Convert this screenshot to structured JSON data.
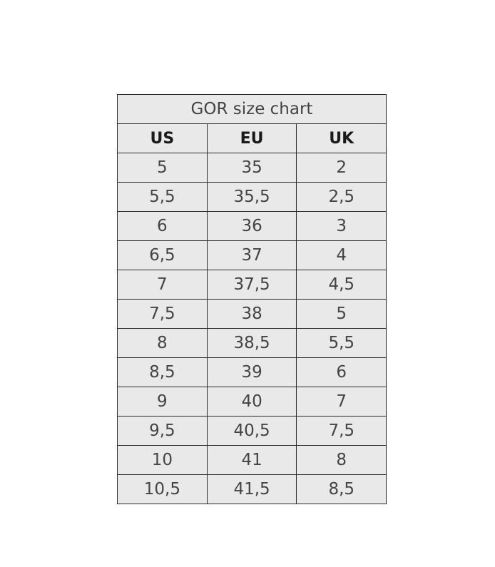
{
  "table": {
    "title": "GOR size chart",
    "headers": [
      "US",
      "EU",
      "UK"
    ],
    "rows": [
      [
        "5",
        "35",
        "2"
      ],
      [
        "5,5",
        "35,5",
        "2,5"
      ],
      [
        "6",
        "36",
        "3"
      ],
      [
        "6,5",
        "37",
        "4"
      ],
      [
        "7",
        "37,5",
        "4,5"
      ],
      [
        "7,5",
        "38",
        "5"
      ],
      [
        "8",
        "38,5",
        "5,5"
      ],
      [
        "8,5",
        "39",
        "6"
      ],
      [
        "9",
        "40",
        "7"
      ],
      [
        "9,5",
        "40,5",
        "7,5"
      ],
      [
        "10",
        "41",
        "8"
      ],
      [
        "10,5",
        "41,5",
        "8,5"
      ]
    ]
  }
}
